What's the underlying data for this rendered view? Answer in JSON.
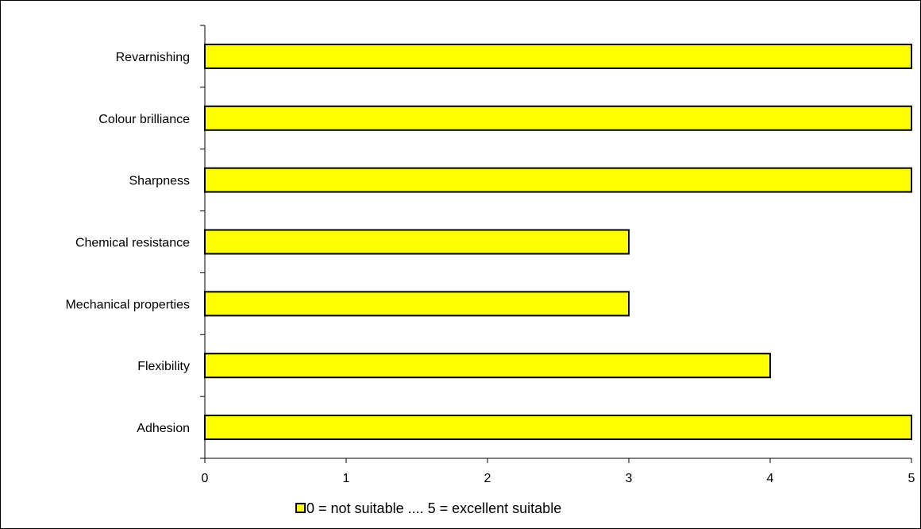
{
  "chart_data": {
    "type": "bar",
    "orientation": "horizontal",
    "categories": [
      "Adhesion",
      "Flexibility",
      "Mechanical properties",
      "Chemical resistance",
      "Sharpness",
      "Colour brilliance",
      "Revarnishing"
    ],
    "series": [
      {
        "name": "0 = not suitable .... 5 = excellent suitable",
        "values": [
          5,
          4,
          3,
          3,
          5,
          5,
          5
        ]
      }
    ],
    "x_ticks": [
      "0",
      "1",
      "2",
      "3",
      "4",
      "5"
    ],
    "xlim": [
      0,
      5
    ],
    "grid": false,
    "legend_position": "bottom",
    "title": "",
    "xlabel": "",
    "ylabel": "",
    "bar_color": "#FFFF00",
    "bar_edge_color": "#000000"
  }
}
